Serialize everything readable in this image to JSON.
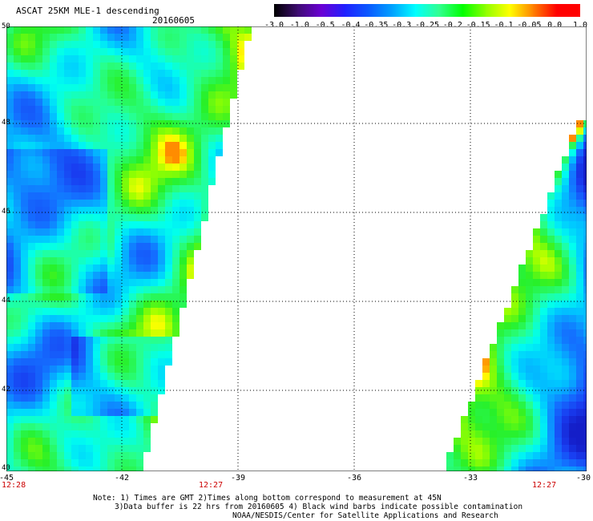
{
  "header": {
    "title": "ASCAT 25KM MLE-1 descending",
    "date": "20160605"
  },
  "colorbar": {
    "ticks": [
      "-3.0",
      "-1.0",
      "-0.5",
      "-0.4",
      "-0.35",
      "-0.3",
      "-0.25",
      "-0.2",
      "-0.15",
      "-0.1",
      "-0.05",
      "0.0",
      "1.0"
    ],
    "colors": [
      "#000000",
      "#3d0c70",
      "#6a00d4",
      "#2020ff",
      "#0a5aff",
      "#00a0ff",
      "#00ffff",
      "#30ff90",
      "#00ff00",
      "#90ff00",
      "#ffff00",
      "#ff8000",
      "#ff0000"
    ]
  },
  "map": {
    "lat_labels": [
      "50",
      "48",
      "46",
      "44",
      "42",
      "40"
    ],
    "lon_labels": [
      "-45",
      "-42",
      "-39",
      "-36",
      "-33",
      "-30"
    ],
    "time_labels": [
      "12:28",
      "12:27",
      "12:27"
    ],
    "grid": true,
    "lon_range": [
      -45,
      -30
    ],
    "lat_range": [
      40,
      50
    ]
  },
  "footer": {
    "line1": "Note: 1) Times are GMT 2)Times along bottom correspond to measurement at 45N",
    "line2": "3)Data buffer is 22 hrs from 20160605 4) Black wind barbs indicate possible contamination",
    "line3": "NOAA/NESDIS/Center for Satellite Applications and Research"
  }
}
